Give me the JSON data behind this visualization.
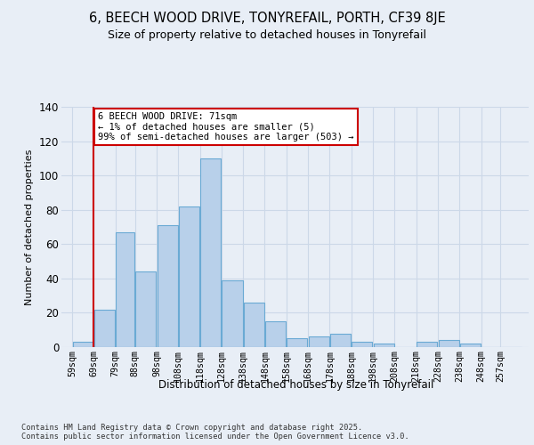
{
  "title": "6, BEECH WOOD DRIVE, TONYREFAIL, PORTH, CF39 8JE",
  "subtitle": "Size of property relative to detached houses in Tonyrefail",
  "xlabel": "Distribution of detached houses by size in Tonyrefail",
  "ylabel": "Number of detached properties",
  "bar_values": [
    3,
    22,
    67,
    44,
    71,
    82,
    110,
    39,
    26,
    15,
    5,
    6,
    8,
    3,
    2,
    0,
    3,
    4,
    2,
    0,
    0
  ],
  "bin_labels": [
    "59sqm",
    "69sqm",
    "79sqm",
    "88sqm",
    "98sqm",
    "108sqm",
    "118sqm",
    "128sqm",
    "138sqm",
    "148sqm",
    "158sqm",
    "168sqm",
    "178sqm",
    "188sqm",
    "198sqm",
    "208sqm",
    "218sqm",
    "228sqm",
    "238sqm",
    "248sqm",
    "257sqm"
  ],
  "bar_color": "#b8d0ea",
  "bar_edge_color": "#6aaad4",
  "grid_color": "#ccd8e8",
  "background_color": "#e8eef6",
  "property_line_color": "#cc0000",
  "annotation_text": "6 BEECH WOOD DRIVE: 71sqm\n← 1% of detached houses are smaller (5)\n99% of semi-detached houses are larger (503) →",
  "annotation_box_color": "#ffffff",
  "annotation_border_color": "#cc0000",
  "footer_text": "Contains HM Land Registry data © Crown copyright and database right 2025.\nContains public sector information licensed under the Open Government Licence v3.0.",
  "ylim": [
    0,
    140
  ],
  "yticks": [
    0,
    20,
    40,
    60,
    80,
    100,
    120,
    140
  ]
}
